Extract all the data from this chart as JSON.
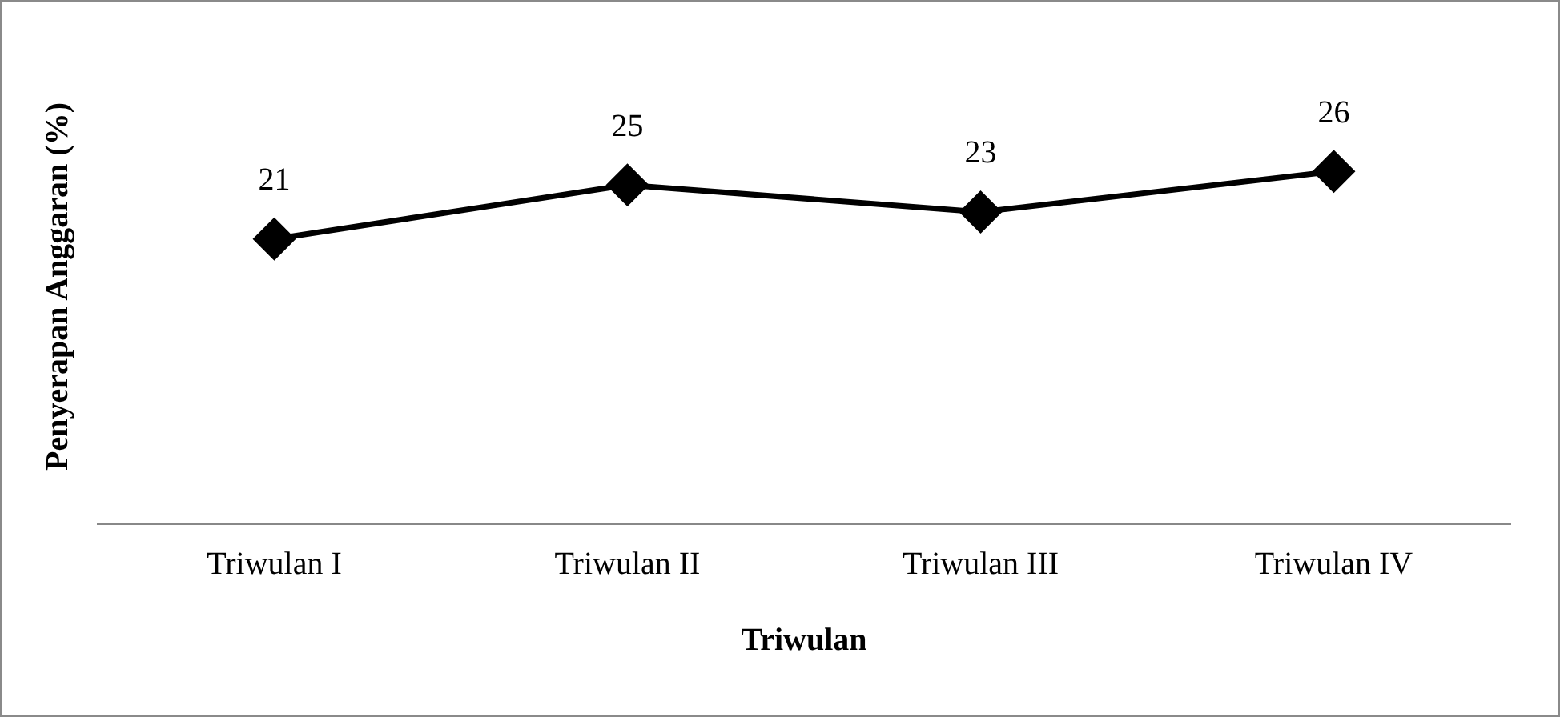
{
  "chart_data": {
    "type": "line",
    "xlabel": "Triwulan",
    "ylabel": "Penyerapan Anggaran (%)",
    "categories": [
      "Triwulan I",
      "Triwulan II",
      "Triwulan III",
      "Triwulan IV"
    ],
    "values": [
      21,
      25,
      23,
      26
    ],
    "color": "#000000",
    "marker": "diamond",
    "line_style": "solid",
    "data_labels": true,
    "grid": false,
    "legend": false
  }
}
